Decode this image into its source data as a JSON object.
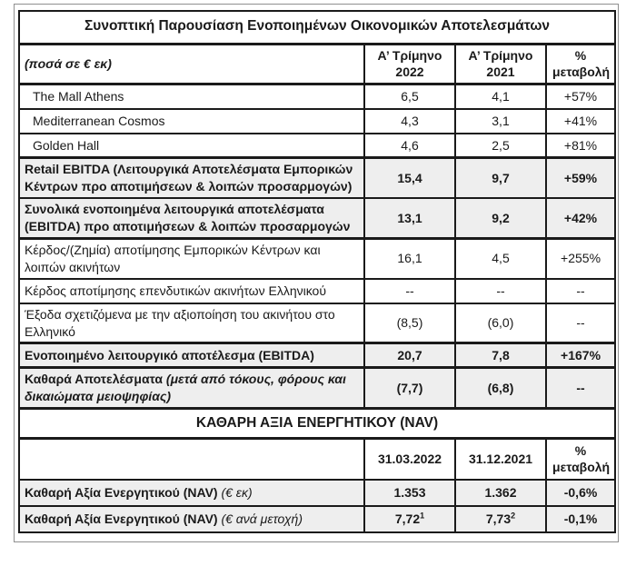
{
  "document": {
    "title": "Συνοπτική Παρουσίαση Ενοποιημένων Οικονομικών Αποτελεσμάτων"
  },
  "main": {
    "header": {
      "units": "(ποσά σε € εκ)",
      "col_2022": "Α’ Τρίμηνο\n2022",
      "col_2021": "Α’ Τρίμηνο\n2021",
      "col_change": "%\nμεταβολή"
    },
    "rows": [
      {
        "label": "The Mall Athens",
        "v2022": "6,5",
        "v2021": "4,1",
        "change": "+57%"
      },
      {
        "label": "Mediterranean Cosmos",
        "v2022": "4,3",
        "v2021": "3,1",
        "change": "+41%"
      },
      {
        "label": "Golden Hall",
        "v2022": "4,6",
        "v2021": "2,5",
        "change": "+81%"
      },
      {
        "label": "Retail EBITDA (Λειτουργικά Αποτελέσματα Εμπορικών Κέντρων προ αποτιμήσεων & λοιπών προσαρμογών)",
        "v2022": "15,4",
        "v2021": "9,7",
        "change": "+59%"
      },
      {
        "label": "Συνολικά ενοποιημένα λειτουργικά αποτελέσματα (EBITDA) προ αποτιμήσεων & λοιπών προσαρμογών",
        "v2022": "13,1",
        "v2021": "9,2",
        "change": "+42%"
      },
      {
        "label": "Κέρδος/(Ζημία) αποτίμησης Εμπορικών Κέντρων και λοιπών ακινήτων",
        "v2022": "16,1",
        "v2021": "4,5",
        "change": "+255%"
      },
      {
        "label": "Κέρδος αποτίμησης επενδυτικών ακινήτων Ελληνικού",
        "v2022": "--",
        "v2021": "--",
        "change": "--"
      },
      {
        "label": "Έξοδα σχετιζόμενα με την αξιοποίηση του ακινήτου στο Ελληνικό",
        "v2022": "(8,5)",
        "v2021": "(6,0)",
        "change": "--"
      },
      {
        "label": "Ενοποιημένο λειτουργικό αποτέλεσμα (EBITDA)",
        "v2022": "20,7",
        "v2021": "7,8",
        "change": "+167%"
      },
      {
        "label": "Καθαρά Αποτελέσματα",
        "label_note": "(μετά από τόκους, φόρους και δικαιώματα μειοψηφίας)",
        "v2022": "(7,7)",
        "v2021": "(6,8)",
        "change": "--"
      }
    ]
  },
  "nav": {
    "title": "ΚΑΘΑΡΗ ΑΞΙΑ ΕΝΕΡΓΗΤΙΚΟΥ (NAV)",
    "header": {
      "col_date1": "31.03.2022",
      "col_date2": "31.12.2021",
      "col_change": "%\nμεταβολή"
    },
    "rows": [
      {
        "label": "Καθαρή Αξία Ενεργητικού (NAV)",
        "label_note": "(€ εκ)",
        "v1": "1.353",
        "v2": "1.362",
        "change": "-0,6%"
      },
      {
        "label": "Καθαρή Αξία Ενεργητικού (NAV)",
        "label_note": "(€ ανά μετοχή)",
        "v1": "7,72",
        "v1_sup": "1",
        "v2": "7,73",
        "v2_sup": "2",
        "change": "-0,1%"
      }
    ]
  },
  "colors": {
    "row_shading": "#eeeeee",
    "table_border": "#1a1a1a",
    "frame_border": "#8f8f8f",
    "text": "#1a1a1a"
  }
}
